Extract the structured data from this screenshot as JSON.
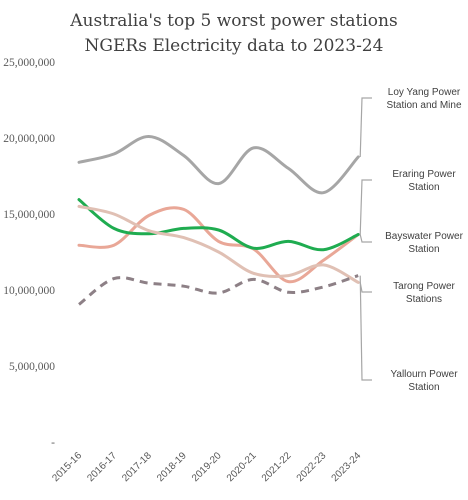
{
  "chart_data": {
    "type": "line",
    "title_lines": [
      "Australia's top 5 worst power stations",
      "NGERs Electricity data to 2023-24"
    ],
    "categories": [
      "2015-16",
      "2016-17",
      "2017-18",
      "2018-19",
      "2019-20",
      "2020-21",
      "2021-22",
      "2022-23",
      "2023-24"
    ],
    "ylim": [
      0,
      25000000
    ],
    "yticks": [
      0,
      5000000,
      10000000,
      15000000,
      20000000,
      25000000
    ],
    "ytick_labels": [
      "-",
      "5,000,000",
      "10,000,000",
      "15,000,000",
      "20,000,000",
      "25,000,000"
    ],
    "grid": false,
    "series": [
      {
        "name_lines": [
          "Loy Yang Power",
          "Station and Mine"
        ],
        "color": "#a6a6a6",
        "dash": false,
        "values": [
          18400000,
          18950000,
          20100000,
          18850000,
          17000000,
          19350000,
          18000000,
          16400000,
          18750000
        ]
      },
      {
        "name_lines": [
          "Eraring Power",
          "Station"
        ],
        "color": "#e9a797",
        "dash": false,
        "values": [
          12950000,
          12950000,
          14900000,
          15300000,
          13200000,
          12700000,
          10550000,
          11950000,
          13650000
        ]
      },
      {
        "name_lines": [
          "Bayswater Power",
          "Station"
        ],
        "color": "#1fac50",
        "dash": false,
        "values": [
          15950000,
          14050000,
          13700000,
          14050000,
          13950000,
          12750000,
          13200000,
          12650000,
          13650000
        ]
      },
      {
        "name_lines": [
          "Tarong Power",
          "Stations"
        ],
        "color": "#e0c0b4",
        "dash": false,
        "values": [
          15500000,
          15000000,
          13900000,
          13450000,
          12500000,
          11100000,
          10950000,
          11650000,
          10500000
        ]
      },
      {
        "name_lines": [
          "Yallourn  Power",
          "Station"
        ],
        "color": "#8d8086",
        "dash": true,
        "values": [
          9050000,
          10750000,
          10450000,
          10250000,
          9800000,
          10700000,
          9850000,
          10200000,
          10950000
        ]
      }
    ]
  }
}
